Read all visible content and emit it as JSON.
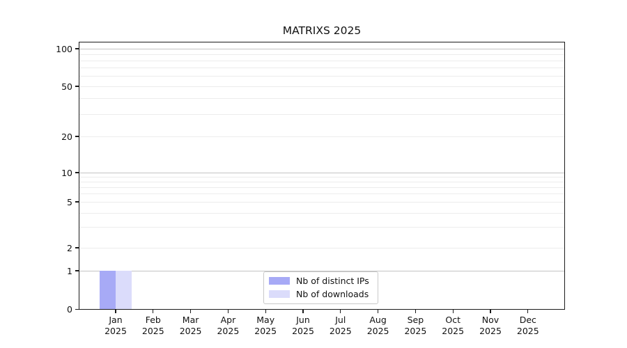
{
  "chart_data": {
    "type": "bar",
    "title": "MATRIXS 2025",
    "categories": [
      {
        "month": "Jan",
        "year": "2025"
      },
      {
        "month": "Feb",
        "year": "2025"
      },
      {
        "month": "Mar",
        "year": "2025"
      },
      {
        "month": "Apr",
        "year": "2025"
      },
      {
        "month": "May",
        "year": "2025"
      },
      {
        "month": "Jun",
        "year": "2025"
      },
      {
        "month": "Jul",
        "year": "2025"
      },
      {
        "month": "Aug",
        "year": "2025"
      },
      {
        "month": "Sep",
        "year": "2025"
      },
      {
        "month": "Oct",
        "year": "2025"
      },
      {
        "month": "Nov",
        "year": "2025"
      },
      {
        "month": "Dec",
        "year": "2025"
      }
    ],
    "series": [
      {
        "name": "Nb of distinct IPs",
        "color": "#a7aaf6",
        "values": [
          1,
          0,
          0,
          0,
          0,
          0,
          0,
          0,
          0,
          0,
          0,
          0
        ]
      },
      {
        "name": "Nb of downloads",
        "color": "#dbdcfb",
        "values": [
          1,
          0,
          0,
          0,
          0,
          0,
          0,
          0,
          0,
          0,
          0,
          0
        ]
      }
    ],
    "xlabel": "",
    "ylabel": "",
    "y_ticks": [
      0,
      1,
      2,
      5,
      10,
      20,
      50,
      100
    ],
    "y_major_gridlines": [
      1,
      10,
      100
    ],
    "y_minor_gridlines": [
      2,
      3,
      4,
      5,
      6,
      7,
      8,
      9,
      20,
      30,
      40,
      50,
      60,
      70,
      80,
      90
    ],
    "ylim": [
      0,
      113
    ],
    "scale": "symlog",
    "grid": "on",
    "legend_position": "lower center"
  },
  "colors": {
    "background": "#ffffff",
    "axis": "#1a1a1a",
    "major_grid": "#c3c3c3",
    "minor_grid": "#ececec",
    "legend_border": "#c9c9c9"
  }
}
